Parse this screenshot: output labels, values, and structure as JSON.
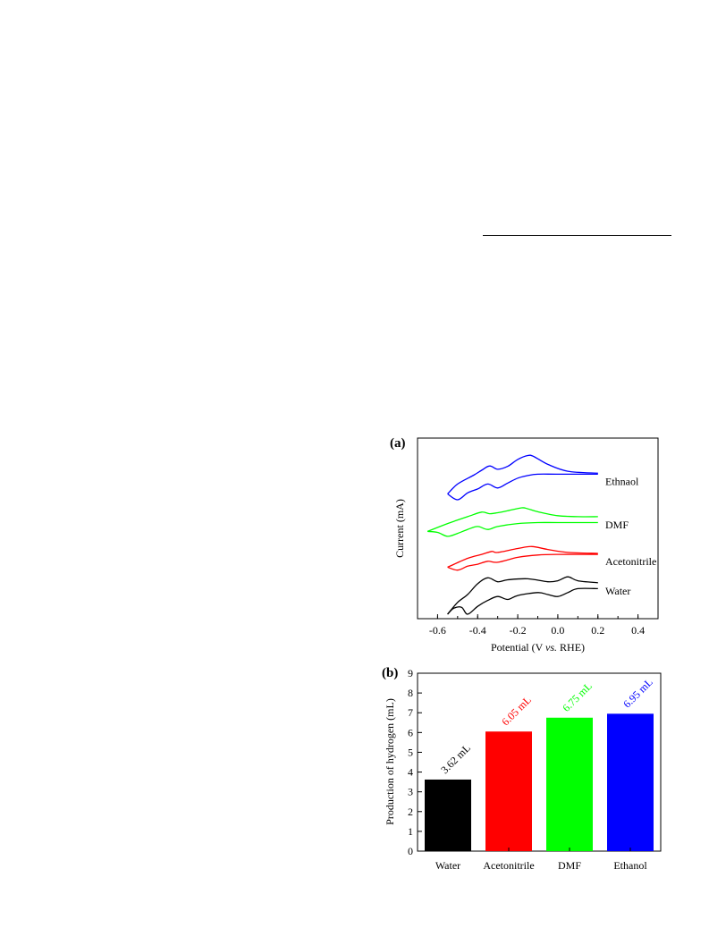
{
  "chart_data": [
    {
      "panel_label": "(a)",
      "type": "line",
      "xlabel_parts": [
        "Potential (V ",
        "vs.",
        " RHE)"
      ],
      "ylabel": "Current (mA)",
      "xlim": [
        -0.7,
        0.5
      ],
      "xticks": [
        -0.6,
        -0.4,
        -0.2,
        0.0,
        0.2,
        0.4
      ],
      "xtick_labels": [
        "-0.6",
        "-0.4",
        "-0.2",
        "0.0",
        "0.2",
        "0.4"
      ],
      "y_ticks_shown": false,
      "series": [
        {
          "name": "Ethnaol",
          "color": "#0000ff",
          "upper": [
            [
              -0.55,
              -0.2
            ],
            [
              -0.5,
              0.3
            ],
            [
              -0.42,
              0.75
            ],
            [
              -0.38,
              1.0
            ],
            [
              -0.34,
              1.22
            ],
            [
              -0.3,
              1.05
            ],
            [
              -0.25,
              1.2
            ],
            [
              -0.2,
              1.55
            ],
            [
              -0.15,
              1.75
            ],
            [
              -0.12,
              1.7
            ],
            [
              -0.05,
              1.3
            ],
            [
              0.05,
              0.95
            ],
            [
              0.2,
              0.85
            ]
          ],
          "lower": [
            [
              -0.55,
              -0.2
            ],
            [
              -0.5,
              -0.5
            ],
            [
              -0.45,
              -0.15
            ],
            [
              -0.4,
              0.05
            ],
            [
              -0.35,
              0.3
            ],
            [
              -0.3,
              0.1
            ],
            [
              -0.25,
              0.35
            ],
            [
              -0.2,
              0.6
            ],
            [
              -0.15,
              0.73
            ],
            [
              -0.1,
              0.8
            ],
            [
              0.0,
              0.8
            ],
            [
              0.2,
              0.8
            ]
          ]
        },
        {
          "name": "DMF",
          "color": "#00ff00",
          "upper": [
            [
              -0.65,
              -0.2
            ],
            [
              -0.55,
              0.2
            ],
            [
              -0.45,
              0.55
            ],
            [
              -0.38,
              0.78
            ],
            [
              -0.34,
              0.7
            ],
            [
              -0.3,
              0.75
            ],
            [
              -0.25,
              0.85
            ],
            [
              -0.18,
              1.0
            ],
            [
              -0.15,
              0.95
            ],
            [
              -0.1,
              0.8
            ],
            [
              0.0,
              0.6
            ],
            [
              0.1,
              0.55
            ],
            [
              0.2,
              0.55
            ]
          ],
          "lower": [
            [
              -0.65,
              -0.2
            ],
            [
              -0.6,
              -0.25
            ],
            [
              -0.55,
              -0.45
            ],
            [
              -0.5,
              -0.3
            ],
            [
              -0.45,
              -0.1
            ],
            [
              -0.4,
              0.05
            ],
            [
              -0.35,
              -0.1
            ],
            [
              -0.3,
              0.05
            ],
            [
              -0.2,
              0.2
            ],
            [
              -0.1,
              0.25
            ],
            [
              0.0,
              0.25
            ],
            [
              0.2,
              0.25
            ]
          ]
        },
        {
          "name": "Acetonitrile",
          "color": "#ff0000",
          "upper": [
            [
              -0.55,
              -0.2
            ],
            [
              -0.45,
              0.25
            ],
            [
              -0.38,
              0.45
            ],
            [
              -0.33,
              0.6
            ],
            [
              -0.3,
              0.55
            ],
            [
              -0.2,
              0.75
            ],
            [
              -0.13,
              0.85
            ],
            [
              -0.05,
              0.7
            ],
            [
              0.05,
              0.55
            ],
            [
              0.2,
              0.5
            ]
          ],
          "lower": [
            [
              -0.55,
              -0.2
            ],
            [
              -0.5,
              -0.35
            ],
            [
              -0.45,
              -0.15
            ],
            [
              -0.4,
              -0.05
            ],
            [
              -0.35,
              0.1
            ],
            [
              -0.3,
              0.05
            ],
            [
              -0.2,
              0.3
            ],
            [
              -0.1,
              0.42
            ],
            [
              0.0,
              0.45
            ],
            [
              0.2,
              0.45
            ]
          ]
        },
        {
          "name": "Water",
          "color": "#000000",
          "upper": [
            [
              -0.55,
              -0.5
            ],
            [
              -0.5,
              0.1
            ],
            [
              -0.45,
              0.5
            ],
            [
              -0.4,
              1.05
            ],
            [
              -0.35,
              1.35
            ],
            [
              -0.3,
              1.15
            ],
            [
              -0.25,
              1.25
            ],
            [
              -0.15,
              1.3
            ],
            [
              -0.05,
              1.15
            ],
            [
              0.0,
              1.2
            ],
            [
              0.05,
              1.4
            ],
            [
              0.1,
              1.2
            ],
            [
              0.2,
              1.1
            ]
          ],
          "lower": [
            [
              -0.55,
              -0.5
            ],
            [
              -0.52,
              -0.2
            ],
            [
              -0.48,
              -0.15
            ],
            [
              -0.45,
              -0.5
            ],
            [
              -0.4,
              -0.1
            ],
            [
              -0.35,
              0.2
            ],
            [
              -0.3,
              0.4
            ],
            [
              -0.25,
              0.25
            ],
            [
              -0.2,
              0.45
            ],
            [
              -0.1,
              0.6
            ],
            [
              -0.05,
              0.5
            ],
            [
              0.0,
              0.4
            ],
            [
              0.05,
              0.6
            ],
            [
              0.1,
              0.8
            ],
            [
              0.2,
              0.8
            ]
          ]
        }
      ]
    },
    {
      "panel_label": "(b)",
      "type": "bar",
      "ylabel": "Production of hydrogen (mL)",
      "xlabel": "",
      "ylim": [
        0,
        9
      ],
      "yticks": [
        0,
        1,
        2,
        3,
        4,
        5,
        6,
        7,
        8,
        9
      ],
      "categories": [
        "Water",
        "Acetonitrile",
        "DMF",
        "Ethanol"
      ],
      "values": [
        3.62,
        6.05,
        6.75,
        6.95
      ],
      "data_labels": [
        "3.62 mL",
        "6.05 mL",
        "6.75 mL",
        "6.95 mL"
      ],
      "colors": [
        "#000000",
        "#ff0000",
        "#00ff00",
        "#0000ff"
      ]
    }
  ]
}
